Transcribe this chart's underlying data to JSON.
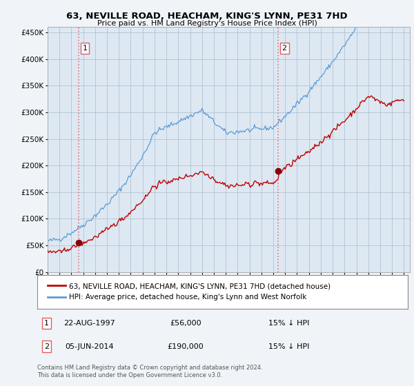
{
  "title1": "63, NEVILLE ROAD, HEACHAM, KING'S LYNN, PE31 7HD",
  "title2": "Price paid vs. HM Land Registry's House Price Index (HPI)",
  "hpi_label": "HPI: Average price, detached house, King's Lynn and West Norfolk",
  "price_label": "63, NEVILLE ROAD, HEACHAM, KING'S LYNN, PE31 7HD (detached house)",
  "sale1_date": "22-AUG-1997",
  "sale1_price": 56000,
  "sale1_note": "15% ↓ HPI",
  "sale2_date": "05-JUN-2014",
  "sale2_price": 190000,
  "sale2_note": "15% ↓ HPI",
  "footer": "Contains HM Land Registry data © Crown copyright and database right 2024.\nThis data is licensed under the Open Government Licence v3.0.",
  "hpi_color": "#5b9bd5",
  "price_color": "#c00000",
  "vline_color": "#e06060",
  "marker_color": "#8b0000",
  "background_color": "#f0f4f8",
  "plot_bg_color": "#dde8f3",
  "plot_bg_color2": "#ffffff",
  "ylim": [
    0,
    460000
  ],
  "xlim_start": 1995.0,
  "xlim_end": 2025.5,
  "sale1_year": 1997.64,
  "sale2_year": 2014.43
}
